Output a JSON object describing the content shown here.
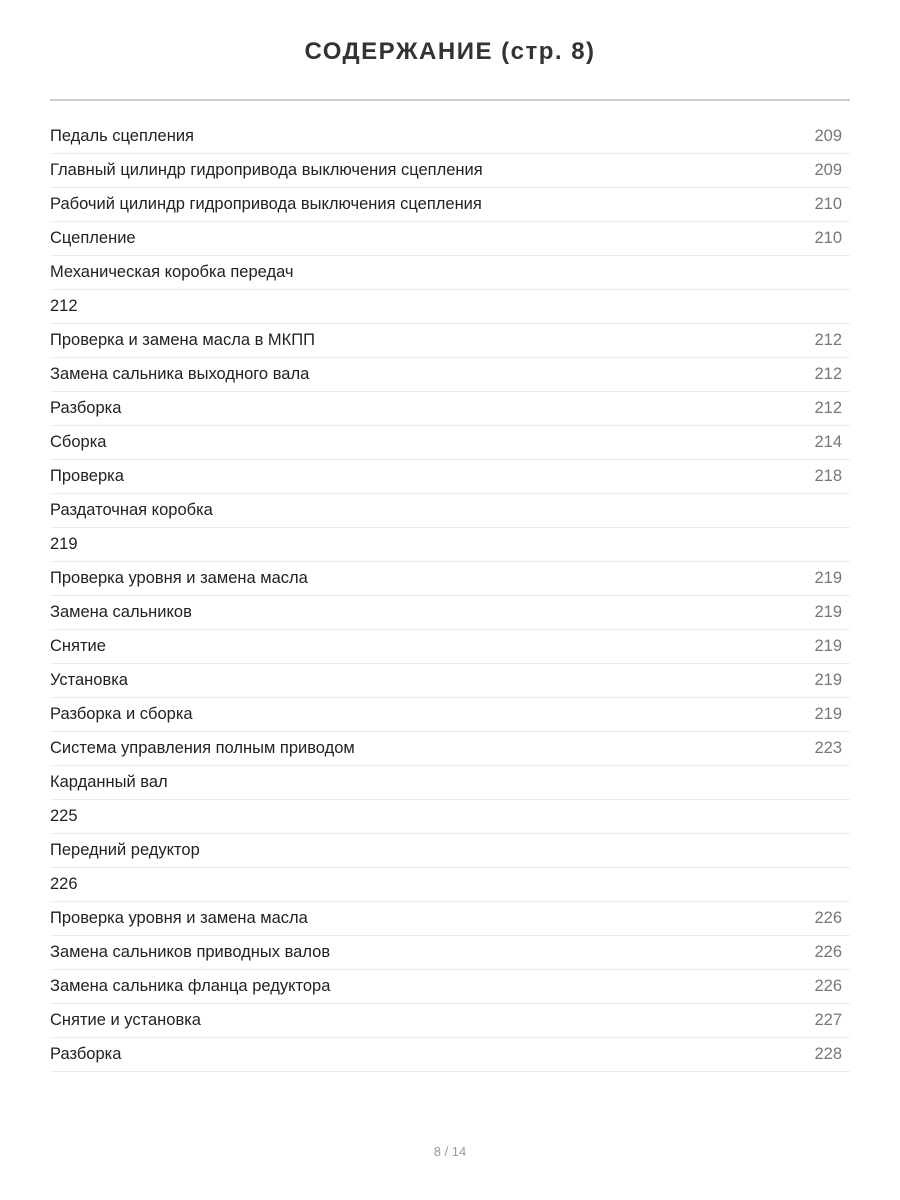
{
  "title": "СОДЕРЖАНИЕ (стр. 8)",
  "entries": [
    {
      "label": "Педаль сцепления",
      "page": "209"
    },
    {
      "label": "Главный цилиндр гидропривода выключения сцепления",
      "page": "209"
    },
    {
      "label": "Рабочий цилиндр гидропривода выключения сцепления",
      "page": "210"
    },
    {
      "label": "Сцепление",
      "page": "210"
    },
    {
      "label": "Механическая коробка передач",
      "page": ""
    },
    {
      "label": "212",
      "page": ""
    },
    {
      "label": "Проверка и замена масла в МКПП",
      "page": "212"
    },
    {
      "label": "Замена сальника выходного вала",
      "page": "212"
    },
    {
      "label": "Разборка",
      "page": "212"
    },
    {
      "label": "Сборка",
      "page": "214"
    },
    {
      "label": "Проверка",
      "page": "218"
    },
    {
      "label": "Раздаточная коробка",
      "page": ""
    },
    {
      "label": "219",
      "page": ""
    },
    {
      "label": "Проверка уровня и замена масла",
      "page": "219"
    },
    {
      "label": "Замена сальников",
      "page": "219"
    },
    {
      "label": "Снятие",
      "page": "219"
    },
    {
      "label": "Установка",
      "page": "219"
    },
    {
      "label": "Разборка и сборка",
      "page": "219"
    },
    {
      "label": "Система управления полным приводом",
      "page": "223"
    },
    {
      "label": "Карданный вал",
      "page": ""
    },
    {
      "label": "225",
      "page": ""
    },
    {
      "label": "Передний редуктор",
      "page": ""
    },
    {
      "label": "226",
      "page": ""
    },
    {
      "label": "Проверка уровня и замена масла",
      "page": "226"
    },
    {
      "label": "Замена сальников приводных валов",
      "page": "226"
    },
    {
      "label": "Замена сальника фланца редуктора",
      "page": "226"
    },
    {
      "label": "Снятие и установка",
      "page": "227"
    },
    {
      "label": "Разборка",
      "page": "228"
    }
  ],
  "footer": "8 / 14"
}
